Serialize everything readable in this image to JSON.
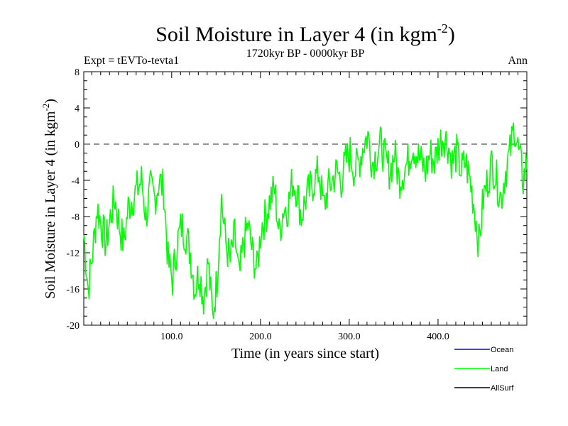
{
  "chart_data": {
    "type": "line",
    "title": "Soil Moisture in Layer 4 (in kgm",
    "title_sup": "-2",
    "title_close": ")",
    "subtitle": "1720kyr BP - 0000kyr BP",
    "left_label": "Expt = tEVTo-tevta1",
    "right_label": "Ann",
    "xlabel": "Time (in years since start)",
    "ylabel": "Soil Moisture in Layer 4 (in kgm",
    "ylabel_sup": "-2",
    "ylabel_close": ")",
    "xlim": [
      1,
      500
    ],
    "ylim": [
      -20,
      8
    ],
    "x_ticks": [
      100,
      200,
      300,
      400
    ],
    "x_tick_labels": [
      "100.0",
      "200.0",
      "300.0",
      "400.0"
    ],
    "y_ticks": [
      8,
      4,
      0,
      -4,
      -8,
      -12,
      -16,
      -20
    ],
    "y_tick_labels": [
      "8",
      "4",
      "0",
      "-4",
      "-8",
      "-12",
      "-16",
      "-20"
    ],
    "zero_line": 0,
    "series": [
      {
        "name": "Ocean",
        "color": "#0000ff",
        "values": []
      },
      {
        "name": "Land",
        "color": "#00ff00",
        "x": [
          1,
          6,
          11,
          16,
          21,
          26,
          31,
          36,
          41,
          46,
          51,
          56,
          61,
          66,
          71,
          76,
          81,
          86,
          91,
          96,
          101,
          106,
          111,
          116,
          121,
          126,
          131,
          136,
          141,
          146,
          151,
          156,
          161,
          166,
          171,
          176,
          181,
          186,
          191,
          196,
          201,
          206,
          211,
          216,
          221,
          226,
          231,
          236,
          241,
          246,
          251,
          256,
          261,
          266,
          271,
          276,
          281,
          286,
          291,
          296,
          301,
          306,
          311,
          316,
          321,
          326,
          331,
          336,
          341,
          346,
          351,
          356,
          361,
          366,
          371,
          376,
          381,
          386,
          391,
          396,
          401,
          406,
          411,
          416,
          421,
          426,
          431,
          436,
          441,
          446,
          451,
          456,
          461,
          466,
          471,
          476,
          481,
          486,
          491,
          496,
          500
        ],
        "values": [
          -10,
          -16,
          -12,
          -7,
          -9,
          -11,
          -8,
          -6,
          -9,
          -11,
          -7,
          -6,
          -5,
          -4,
          -8,
          -5,
          -6,
          -4,
          -5,
          -13,
          -15,
          -11,
          -9,
          -10,
          -12,
          -16,
          -14,
          -17,
          -13,
          -19,
          -15,
          -6,
          -11,
          -13,
          -10,
          -15,
          -11,
          -9,
          -12,
          -14,
          -9,
          -8,
          -6,
          -5,
          -10,
          -7,
          -7,
          -4,
          -5,
          -8,
          -6,
          -5,
          -4,
          -3,
          -7,
          -5,
          -4,
          -3,
          -4,
          -2,
          -1,
          -3,
          -2,
          0,
          1,
          -2,
          -1,
          0,
          -2,
          -3,
          -1,
          -4,
          -3,
          -2,
          0,
          -1,
          -2,
          -3,
          -1,
          -2,
          0,
          1,
          0,
          -2,
          -1,
          -3,
          -2,
          -4,
          -7,
          -11,
          -6,
          -4,
          -2,
          -4,
          -6,
          -3,
          -1,
          2,
          -1,
          -4,
          -2
        ]
      },
      {
        "name": "AllSurf",
        "color": "#000000",
        "values": []
      }
    ],
    "legend": [
      {
        "name": "Ocean",
        "color": "#0000ff"
      },
      {
        "name": "Land",
        "color": "#00ff00"
      },
      {
        "name": "AllSurf",
        "color": "#000000"
      }
    ],
    "legend_position": "bottom-right"
  }
}
